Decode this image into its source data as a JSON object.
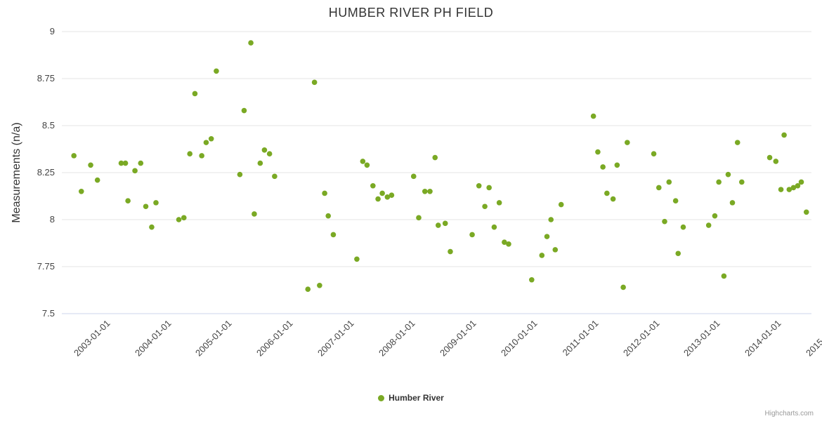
{
  "chart": {
    "title": "HUMBER RIVER PH FIELD",
    "y_axis_title": "Measurements (n/a)",
    "legend": {
      "series_label": "Humber River"
    },
    "credits": "Highcharts.com"
  },
  "chart_data": {
    "type": "scatter",
    "title": "HUMBER RIVER PH FIELD",
    "xlabel": "",
    "ylabel": "Measurements (n/a)",
    "series_name": "Humber River",
    "legend_position": "bottom",
    "grid": "horizontal",
    "marker_color": "#7aa924",
    "grid_color": "#e6e6e6",
    "axis_line_color": "#ccd6eb",
    "ylim": [
      7.5,
      9
    ],
    "yticks": [
      9,
      8.75,
      8.5,
      8.25,
      8,
      7.75,
      7.5
    ],
    "x_range": [
      "2002-04-20",
      "2014-08-01"
    ],
    "xticks": [
      "2003-01-01",
      "2004-01-01",
      "2005-01-01",
      "2006-01-01",
      "2007-01-01",
      "2008-01-01",
      "2009-01-01",
      "2010-01-01",
      "2011-01-01",
      "2012-01-01",
      "2013-01-01",
      "2014-01-01",
      "2015-01-01"
    ],
    "points": [
      [
        "2002-07-01",
        8.34
      ],
      [
        "2002-08-15",
        8.15
      ],
      [
        "2002-10-10",
        8.29
      ],
      [
        "2002-11-20",
        8.21
      ],
      [
        "2003-04-10",
        8.3
      ],
      [
        "2003-05-05",
        8.3
      ],
      [
        "2003-05-20",
        8.1
      ],
      [
        "2003-07-01",
        8.26
      ],
      [
        "2003-08-05",
        8.3
      ],
      [
        "2003-09-05",
        8.07
      ],
      [
        "2003-10-10",
        7.96
      ],
      [
        "2003-11-05",
        8.09
      ],
      [
        "2004-03-20",
        8.0
      ],
      [
        "2004-04-20",
        8.01
      ],
      [
        "2004-05-25",
        8.35
      ],
      [
        "2004-06-25",
        8.67
      ],
      [
        "2004-08-05",
        8.34
      ],
      [
        "2004-09-01",
        8.41
      ],
      [
        "2004-10-01",
        8.43
      ],
      [
        "2004-11-01",
        8.79
      ],
      [
        "2005-03-20",
        8.24
      ],
      [
        "2005-04-15",
        8.58
      ],
      [
        "2005-05-25",
        8.94
      ],
      [
        "2005-06-15",
        8.03
      ],
      [
        "2005-07-20",
        8.3
      ],
      [
        "2005-08-15",
        8.37
      ],
      [
        "2005-09-15",
        8.35
      ],
      [
        "2005-10-15",
        8.23
      ],
      [
        "2006-05-01",
        7.63
      ],
      [
        "2006-06-10",
        8.73
      ],
      [
        "2006-07-10",
        7.65
      ],
      [
        "2006-08-10",
        8.14
      ],
      [
        "2006-09-01",
        8.02
      ],
      [
        "2006-10-01",
        7.92
      ],
      [
        "2007-02-20",
        7.79
      ],
      [
        "2007-03-25",
        8.31
      ],
      [
        "2007-04-20",
        8.29
      ],
      [
        "2007-05-25",
        8.18
      ],
      [
        "2007-06-25",
        8.11
      ],
      [
        "2007-07-20",
        8.14
      ],
      [
        "2007-08-20",
        8.12
      ],
      [
        "2007-09-15",
        8.13
      ],
      [
        "2008-01-25",
        8.23
      ],
      [
        "2008-02-25",
        8.01
      ],
      [
        "2008-04-01",
        8.15
      ],
      [
        "2008-05-01",
        8.15
      ],
      [
        "2008-06-01",
        8.33
      ],
      [
        "2008-06-20",
        7.97
      ],
      [
        "2008-08-01",
        7.98
      ],
      [
        "2008-09-01",
        7.83
      ],
      [
        "2009-01-10",
        7.92
      ],
      [
        "2009-02-20",
        8.18
      ],
      [
        "2009-03-25",
        8.07
      ],
      [
        "2009-04-20",
        8.17
      ],
      [
        "2009-05-20",
        7.96
      ],
      [
        "2009-06-20",
        8.09
      ],
      [
        "2009-07-20",
        7.88
      ],
      [
        "2009-08-15",
        7.87
      ],
      [
        "2010-01-01",
        7.68
      ],
      [
        "2010-03-01",
        7.81
      ],
      [
        "2010-04-01",
        7.91
      ],
      [
        "2010-04-25",
        8.0
      ],
      [
        "2010-05-20",
        7.84
      ],
      [
        "2010-06-25",
        8.08
      ],
      [
        "2011-01-05",
        8.55
      ],
      [
        "2011-02-01",
        8.36
      ],
      [
        "2011-03-01",
        8.28
      ],
      [
        "2011-03-25",
        8.14
      ],
      [
        "2011-05-01",
        8.11
      ],
      [
        "2011-05-25",
        8.29
      ],
      [
        "2011-07-01",
        7.64
      ],
      [
        "2011-07-25",
        8.41
      ],
      [
        "2012-01-01",
        8.35
      ],
      [
        "2012-02-01",
        8.17
      ],
      [
        "2012-03-05",
        7.99
      ],
      [
        "2012-04-01",
        8.2
      ],
      [
        "2012-05-10",
        8.1
      ],
      [
        "2012-05-25",
        7.82
      ],
      [
        "2012-06-25",
        7.96
      ],
      [
        "2012-11-25",
        7.97
      ],
      [
        "2013-01-01",
        8.02
      ],
      [
        "2013-01-25",
        8.2
      ],
      [
        "2013-02-25",
        7.7
      ],
      [
        "2013-03-20",
        8.24
      ],
      [
        "2013-04-15",
        8.09
      ],
      [
        "2013-05-15",
        8.41
      ],
      [
        "2013-06-10",
        8.2
      ],
      [
        "2013-11-25",
        8.33
      ],
      [
        "2014-01-01",
        8.31
      ],
      [
        "2014-02-01",
        8.16
      ],
      [
        "2014-02-20",
        8.45
      ],
      [
        "2014-03-20",
        8.16
      ],
      [
        "2014-04-15",
        8.17
      ],
      [
        "2014-05-10",
        8.18
      ],
      [
        "2014-06-01",
        8.2
      ],
      [
        "2014-07-01",
        8.04
      ]
    ]
  }
}
